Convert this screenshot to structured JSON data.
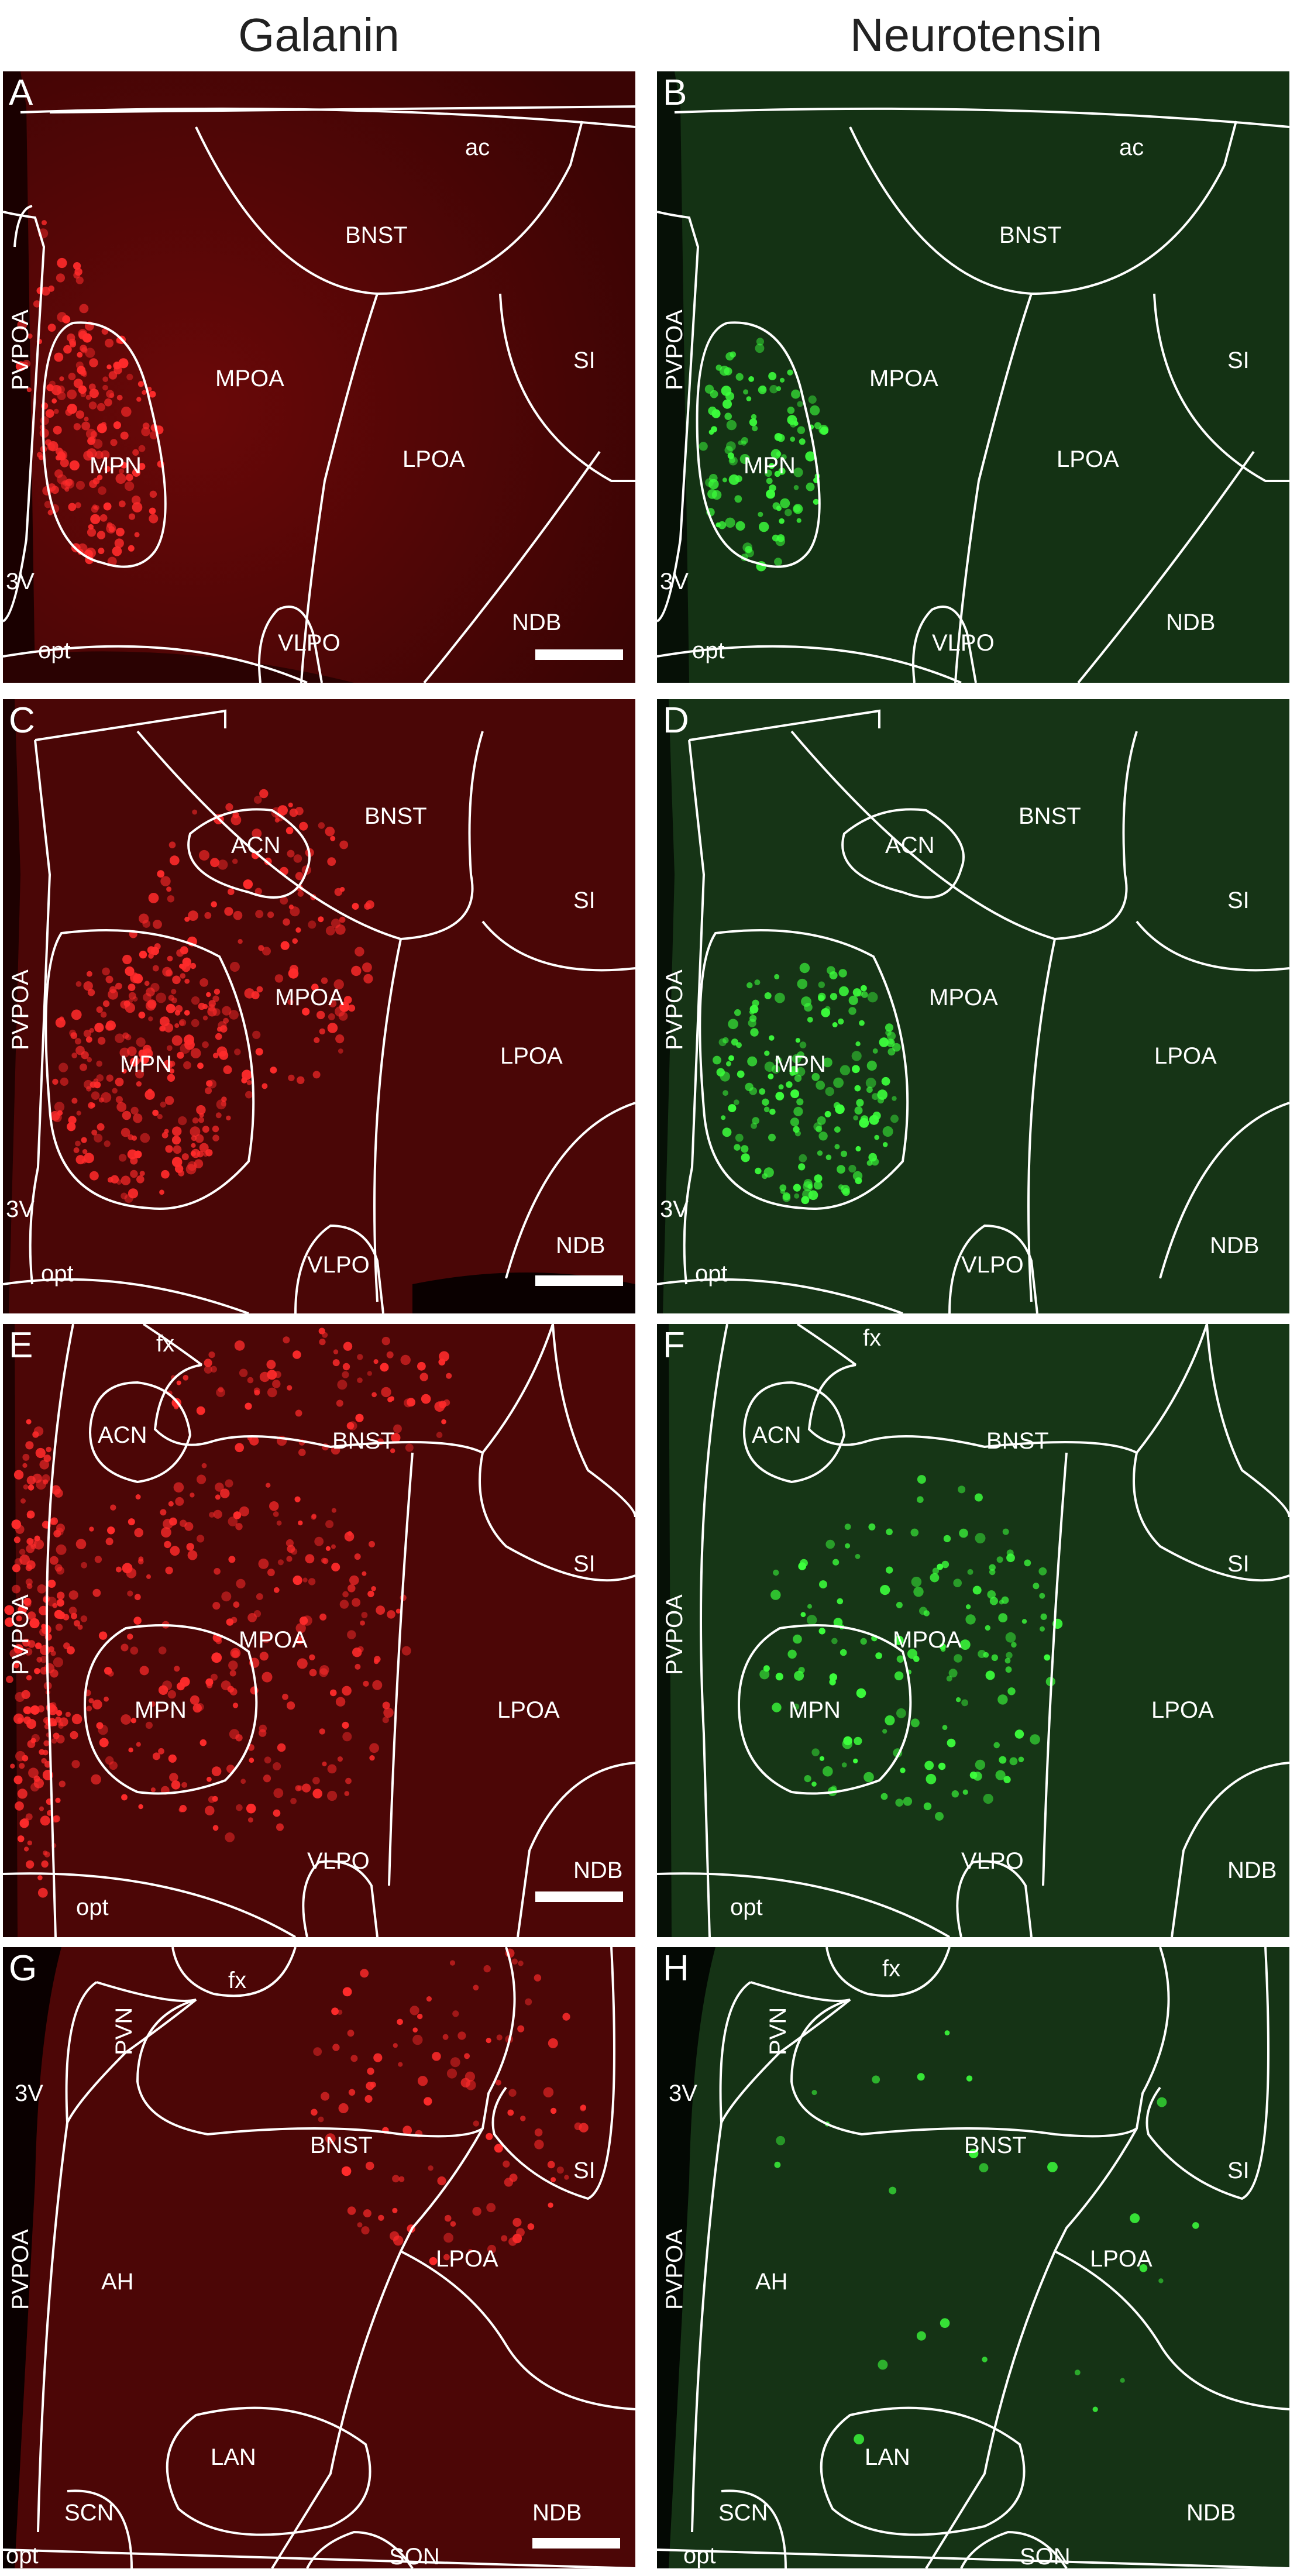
{
  "columns": {
    "left_title": "Galanin",
    "right_title": "Neurotensin"
  },
  "colors": {
    "galanin_background": "#4a0505",
    "galanin_signal": "#ff2b2b",
    "neurotensin_background": "#0f2a0f",
    "neurotensin_signal": "#3cff3c",
    "outline": "#ffffff"
  },
  "panels": {
    "A": {
      "letter": "A",
      "labels": {
        "ac": "ac",
        "bnst": "BNST",
        "pvpoa": "PVPOA",
        "mpoa": "MPOA",
        "si": "SI",
        "mpn": "MPN",
        "lpoa": "LPOA",
        "v3": "3V",
        "vlpo": "VLPO",
        "ndb": "NDB",
        "opt": "opt"
      }
    },
    "B": {
      "letter": "B",
      "labels": {
        "ac": "ac",
        "bnst": "BNST",
        "pvpoa": "PVPOA",
        "mpoa": "MPOA",
        "si": "SI",
        "mpn": "MPN",
        "lpoa": "LPOA",
        "v3": "3V",
        "vlpo": "VLPO",
        "ndb": "NDB",
        "opt": "opt"
      }
    },
    "C": {
      "letter": "C",
      "labels": {
        "acn": "ACN",
        "bnst": "BNST",
        "pvpoa": "PVPOA",
        "si": "SI",
        "mpoa": "MPOA",
        "mpn": "MPN",
        "lpoa": "LPOA",
        "v3": "3V",
        "vlpo": "VLPO",
        "ndb": "NDB",
        "opt": "opt"
      }
    },
    "D": {
      "letter": "D",
      "labels": {
        "acn": "ACN",
        "bnst": "BNST",
        "pvpoa": "PVPOA",
        "si": "SI",
        "mpoa": "MPOA",
        "mpn": "MPN",
        "lpoa": "LPOA",
        "v3": "3V",
        "vlpo": "VLPO",
        "ndb": "NDB",
        "opt": "opt"
      }
    },
    "E": {
      "letter": "E",
      "labels": {
        "fx": "fx",
        "acn": "ACN",
        "bnst": "BNST",
        "si": "SI",
        "pvpoa": "PVPOA",
        "mpoa": "MPOA",
        "mpn": "MPN",
        "lpoa": "LPOA",
        "vlpo": "VLPO",
        "ndb": "NDB",
        "opt": "opt"
      }
    },
    "F": {
      "letter": "F",
      "labels": {
        "fx": "fx",
        "acn": "ACN",
        "bnst": "BNST",
        "si": "SI",
        "pvpoa": "PVPOA",
        "mpoa": "MPOA",
        "mpn": "MPN",
        "lpoa": "LPOA",
        "vlpo": "VLPO",
        "ndb": "NDB",
        "opt": "opt"
      }
    },
    "G": {
      "letter": "G",
      "labels": {
        "fx": "fx",
        "pvn": "PVN",
        "v3": "3V",
        "bnst": "BNST",
        "si": "SI",
        "pvpoa": "PVPOA",
        "ah": "AH",
        "lpoa": "LPOA",
        "lan": "LAN",
        "scn": "SCN",
        "ndb": "NDB",
        "son": "SON",
        "opt": "opt"
      }
    },
    "H": {
      "letter": "H",
      "labels": {
        "fx": "fx",
        "pvn": "PVN",
        "v3": "3V",
        "bnst": "BNST",
        "si": "SI",
        "pvpoa": "PVPOA",
        "ah": "AH",
        "lpoa": "LPOA",
        "lan": "LAN",
        "scn": "SCN",
        "ndb": "NDB",
        "son": "SON",
        "opt": "opt"
      }
    }
  }
}
